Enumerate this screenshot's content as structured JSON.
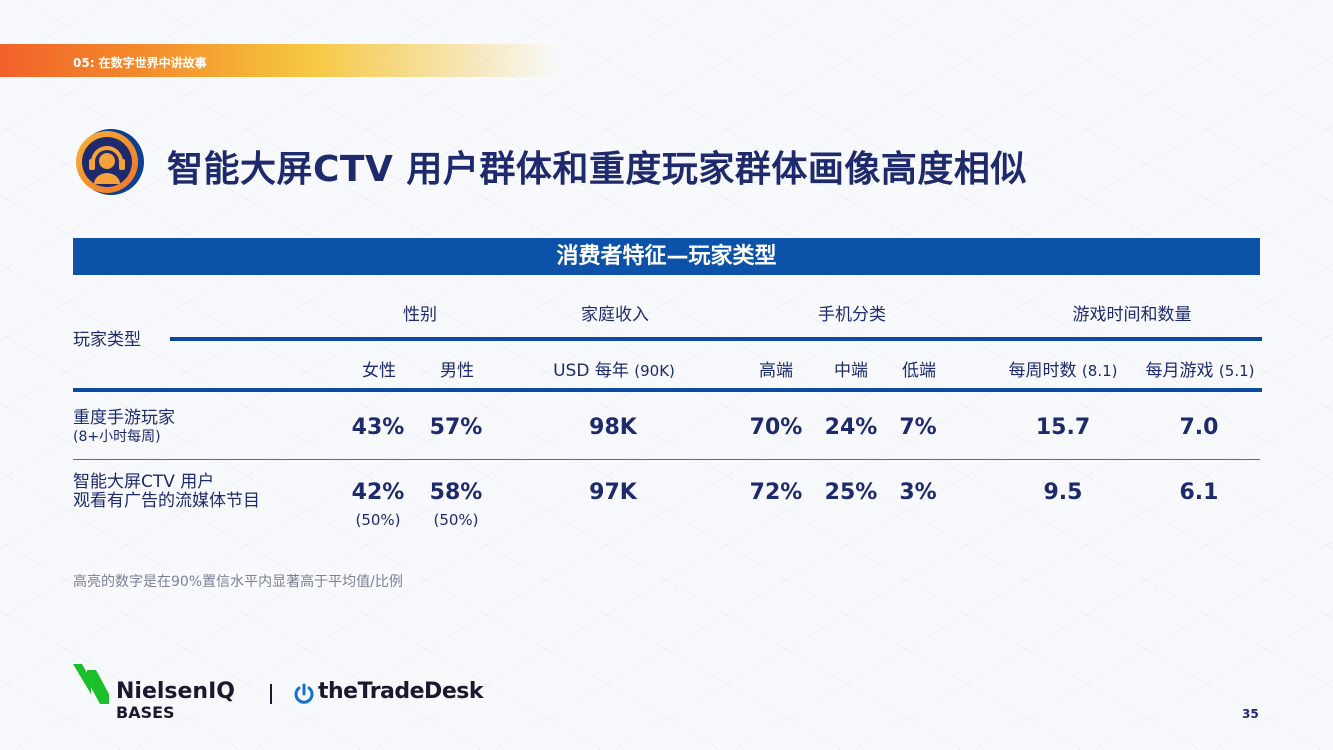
{
  "header": {
    "section_label": "05: 在数字世界中讲故事",
    "title": "智能大屏CTV 用户群体和重度玩家群体画像高度相似"
  },
  "table": {
    "banner": "消费者特征—玩家类型",
    "row_header_label": "玩家类型",
    "groups": {
      "gender": "性别",
      "income": "家庭收入",
      "phone": "手机分类",
      "gaming": "游戏时间和数量"
    },
    "subheaders": {
      "female": "女性",
      "male": "男性",
      "income_label": "USD 每年",
      "income_value": "(90K)",
      "high": "高端",
      "mid": "中端",
      "low": "低端",
      "weekly_hours_label": "每周时数",
      "weekly_hours_value": "(8.1)",
      "monthly_games_label": "每月游戏",
      "monthly_games_value": "(5.1)"
    },
    "rows": [
      {
        "label": "重度手游玩家",
        "note": "(8+小时每周)",
        "female": "43%",
        "male": "57%",
        "income": "98K",
        "high": "70%",
        "mid": "24%",
        "low": "7%",
        "weekly_hours": "15.7",
        "monthly_games": "7.0"
      },
      {
        "label": "智能大屏CTV 用户",
        "note": "观看有广告的流媒体节目",
        "female": "42%",
        "male": "58%",
        "female_base": "(50%)",
        "male_base": "(50%)",
        "income": "97K",
        "high": "72%",
        "mid": "25%",
        "low": "3%",
        "weekly_hours": "9.5",
        "monthly_games": "6.1"
      }
    ]
  },
  "footnote": "高亮的数字是在90%置信水平内显著高于平均值/比例",
  "footer": {
    "logo_nielsen": "NielsenIQ",
    "logo_bases": "BASES",
    "logo_tradedesk": "theTradeDesk",
    "page_number": "35"
  },
  "colors": {
    "brand_blue": "#0b52a8",
    "title_navy": "#1e2a6b",
    "banner_orange": "#f2612a",
    "banner_yellow": "#f6c740",
    "nielsen_green": "#1bbf2c"
  },
  "icons": [
    "headset-person-icon",
    "nielsen-mark-icon",
    "tradedesk-power-icon"
  ]
}
